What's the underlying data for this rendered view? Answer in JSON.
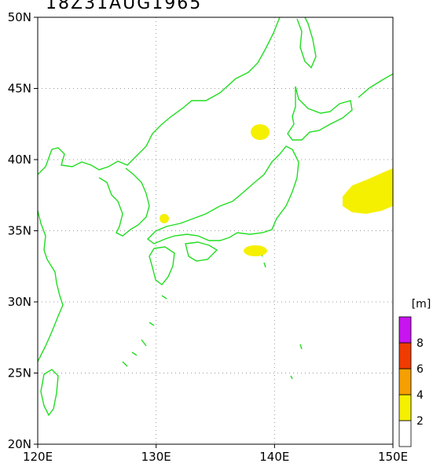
{
  "title": "18Z31AUG1965",
  "map": {
    "lon_range": [
      120,
      150
    ],
    "lat_range": [
      20,
      50
    ],
    "lat_ticks": [
      {
        "value": 50,
        "label": "50N"
      },
      {
        "value": 45,
        "label": "45N"
      },
      {
        "value": 40,
        "label": "40N"
      },
      {
        "value": 35,
        "label": "35N"
      },
      {
        "value": 30,
        "label": "30N"
      },
      {
        "value": 25,
        "label": "25N"
      },
      {
        "value": 20,
        "label": "20N"
      }
    ],
    "lon_ticks": [
      {
        "value": 120,
        "label": "120E"
      },
      {
        "value": 130,
        "label": "130E"
      },
      {
        "value": 140,
        "label": "140E"
      },
      {
        "value": 150,
        "label": "150E"
      }
    ],
    "grid": "dotted",
    "coastline_color": "#22dd22",
    "wave_regions": [
      {
        "name": "sea-of-japan-patch",
        "level": 2,
        "center": [
          138.8,
          42.0
        ]
      },
      {
        "name": "tsushima-patch",
        "level": 2,
        "center": [
          130.7,
          35.9
        ]
      },
      {
        "name": "enshunada-patch",
        "level": 2,
        "center": [
          138.4,
          33.6
        ]
      },
      {
        "name": "pacific-patch",
        "level": 2,
        "center": [
          147.5,
          37.5
        ]
      }
    ]
  },
  "colorbar": {
    "unit": "[m]",
    "levels": [
      {
        "label": "2",
        "color": "#ffffff"
      },
      {
        "label": "4",
        "color": "#f5f000"
      },
      {
        "label": "6",
        "color": "#f5a000"
      },
      {
        "label": "8",
        "color": "#f03c00"
      },
      {
        "label": "",
        "color": "#c814f0"
      }
    ]
  }
}
